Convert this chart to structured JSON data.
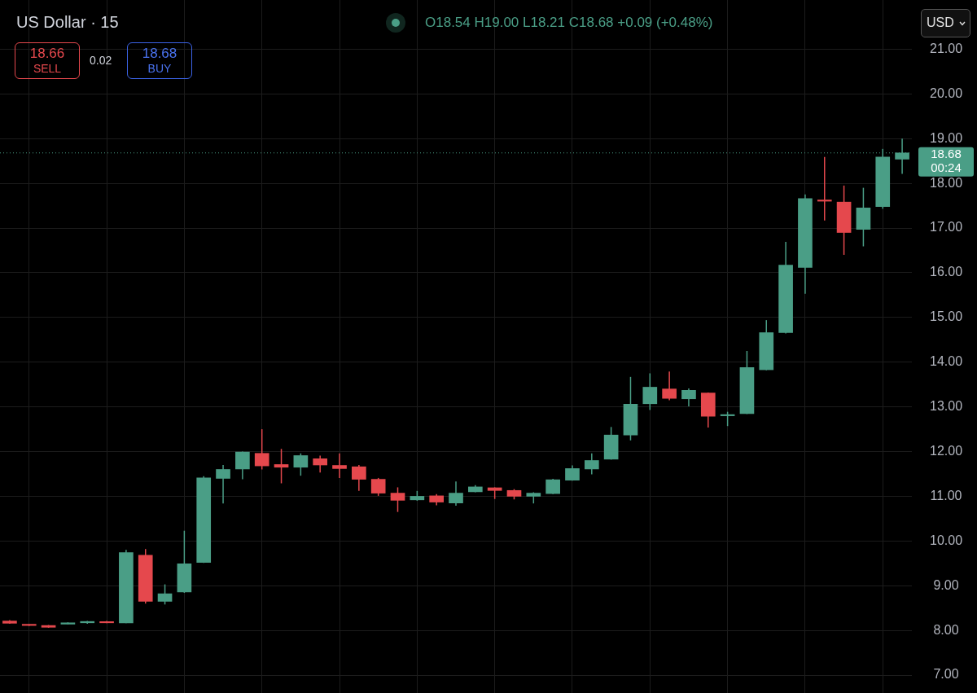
{
  "chart_data": {
    "type": "candlestick",
    "title": "US Dollar · 15",
    "categories": [
      null,
      null,
      null,
      null,
      null,
      null,
      null,
      null,
      null,
      null,
      null,
      null,
      null,
      null,
      null,
      null,
      null,
      null,
      null,
      null,
      null,
      null,
      null,
      null,
      null,
      null,
      null,
      null,
      null,
      null,
      null,
      null,
      null,
      null,
      null,
      null,
      null,
      null,
      null,
      null,
      null,
      null,
      null,
      null,
      null,
      null,
      null
    ],
    "ohlc": [
      [
        8.21,
        8.23,
        8.15,
        8.16
      ],
      [
        8.13,
        8.14,
        8.1,
        8.11
      ],
      [
        8.11,
        8.12,
        8.06,
        8.07
      ],
      [
        8.14,
        8.18,
        8.14,
        8.17
      ],
      [
        8.17,
        8.21,
        8.15,
        8.2
      ],
      [
        8.19,
        8.21,
        8.16,
        8.17
      ],
      [
        8.17,
        9.8,
        8.16,
        9.74
      ],
      [
        9.68,
        9.82,
        8.6,
        8.65
      ],
      [
        8.65,
        9.03,
        8.58,
        8.82
      ],
      [
        8.86,
        10.23,
        8.84,
        9.49
      ],
      [
        9.52,
        11.45,
        9.51,
        11.41
      ],
      [
        11.4,
        11.7,
        10.84,
        11.6
      ],
      [
        11.61,
        12.0,
        11.38,
        11.99
      ],
      [
        11.96,
        12.5,
        11.6,
        11.68
      ],
      [
        11.71,
        12.06,
        11.29,
        11.65
      ],
      [
        11.65,
        11.96,
        11.46,
        11.91
      ],
      [
        11.84,
        11.91,
        11.53,
        11.7
      ],
      [
        11.69,
        11.96,
        11.41,
        11.62
      ],
      [
        11.66,
        11.7,
        11.12,
        11.38
      ],
      [
        11.38,
        11.41,
        11.01,
        11.07
      ],
      [
        11.07,
        11.2,
        10.65,
        10.91
      ],
      [
        10.92,
        11.12,
        10.9,
        11.0
      ],
      [
        11.01,
        11.05,
        10.8,
        10.87
      ],
      [
        10.85,
        11.33,
        10.79,
        11.07
      ],
      [
        11.1,
        11.25,
        11.09,
        11.21
      ],
      [
        11.19,
        11.2,
        10.94,
        11.13
      ],
      [
        11.13,
        11.16,
        10.93,
        11.0
      ],
      [
        11.0,
        11.09,
        10.84,
        11.07
      ],
      [
        11.06,
        11.39,
        11.05,
        11.37
      ],
      [
        11.36,
        11.69,
        11.35,
        11.62
      ],
      [
        11.61,
        11.96,
        11.49,
        11.8
      ],
      [
        11.83,
        12.55,
        11.82,
        12.37
      ],
      [
        12.37,
        13.67,
        12.25,
        13.06
      ],
      [
        13.07,
        13.75,
        12.93,
        13.44
      ],
      [
        13.4,
        13.79,
        13.15,
        13.19
      ],
      [
        13.18,
        13.41,
        13.01,
        13.37
      ],
      [
        13.31,
        13.32,
        12.54,
        12.79
      ],
      [
        12.8,
        12.89,
        12.57,
        12.82
      ],
      [
        12.85,
        14.25,
        12.84,
        13.88
      ],
      [
        13.83,
        14.94,
        13.82,
        14.66
      ],
      [
        14.66,
        16.69,
        14.64,
        16.17
      ],
      [
        16.12,
        17.75,
        15.53,
        17.66
      ],
      [
        17.62,
        18.59,
        17.17,
        17.6
      ],
      [
        17.58,
        17.95,
        16.4,
        16.9
      ],
      [
        16.97,
        17.9,
        16.59,
        17.45
      ],
      [
        17.48,
        18.77,
        17.43,
        18.59
      ],
      [
        18.54,
        19.0,
        18.21,
        18.68
      ]
    ],
    "colors": [
      "#e5484d",
      "#e5484d",
      "#e5484d",
      "#4a9e86",
      "#4a9e86",
      "#e5484d",
      "#4a9e86",
      "#e5484d",
      "#4a9e86",
      "#4a9e86",
      "#4a9e86",
      "#4a9e86",
      "#4a9e86",
      "#e5484d",
      "#e5484d",
      "#4a9e86",
      "#e5484d",
      "#e5484d",
      "#e5484d",
      "#e5484d",
      "#e5484d",
      "#4a9e86",
      "#e5484d",
      "#4a9e86",
      "#4a9e86",
      "#e5484d",
      "#e5484d",
      "#4a9e86",
      "#4a9e86",
      "#4a9e86",
      "#4a9e86",
      "#4a9e86",
      "#4a9e86",
      "#4a9e86",
      "#e5484d",
      "#4a9e86",
      "#e5484d",
      "#4a9e86",
      "#4a9e86",
      "#4a9e86",
      "#4a9e86",
      "#4a9e86",
      "#e5484d",
      "#e5484d",
      "#4a9e86",
      "#4a9e86",
      "#4a9e86"
    ],
    "ylim": [
      6.6,
      22.1
    ],
    "yticks": [
      {
        "value": 7,
        "label": "7.00"
      },
      {
        "value": 8,
        "label": "8.00"
      },
      {
        "value": 9,
        "label": "9.00"
      },
      {
        "value": 10,
        "label": "10.00"
      },
      {
        "value": 11,
        "label": "11.00"
      },
      {
        "value": 12,
        "label": "12.00"
      },
      {
        "value": 13,
        "label": "13.00"
      },
      {
        "value": 14,
        "label": "14.00"
      },
      {
        "value": 15,
        "label": "15.00"
      },
      {
        "value": 16,
        "label": "16.00"
      },
      {
        "value": 17,
        "label": "17.00"
      },
      {
        "value": 18,
        "label": "18.00"
      },
      {
        "value": 19,
        "label": "19.00"
      },
      {
        "value": 20,
        "label": "20.00"
      },
      {
        "value": 21,
        "label": "21.00"
      }
    ],
    "grid": true,
    "tick_labels": "y",
    "ref_lines": [
      {
        "axis": "y",
        "value": 18.68,
        "label": "18.68 00:24",
        "color": "#4a9e86",
        "line_style": "dotted"
      }
    ],
    "annotations": [
      "O18.54 H19.00 L18.21 C18.68 +0.09 (+0.48%)",
      "18.66",
      "SELL",
      "0.02",
      "18.68",
      "BUY",
      "USD"
    ]
  }
}
